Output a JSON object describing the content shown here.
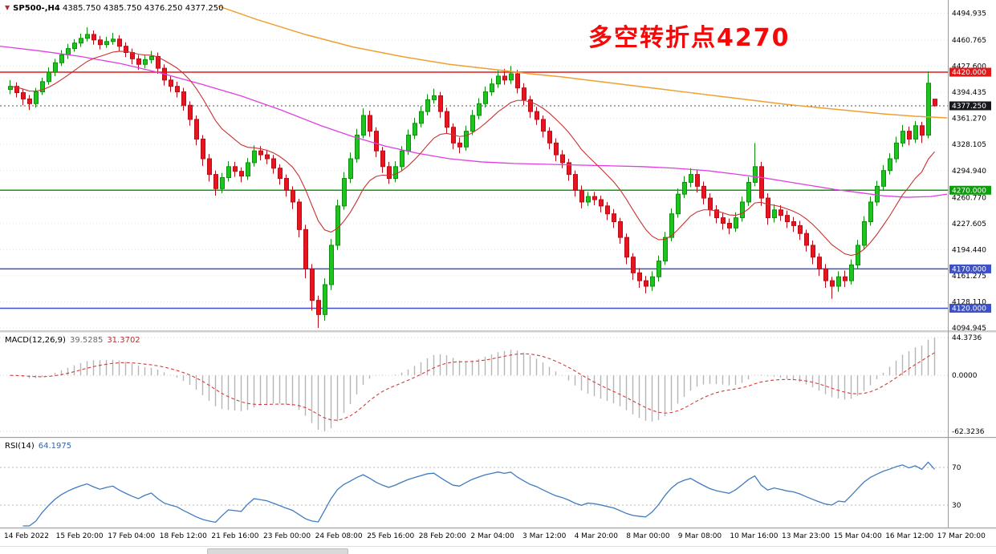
{
  "header": {
    "symbol": "SP500-,H4",
    "ohlc": "4385.750 4385.750 4376.250 4377.250"
  },
  "annotation": {
    "text": "多空转折点4270",
    "color": "#f50808"
  },
  "price_axis": {
    "labels": [
      "4494.935",
      "4460.765",
      "4427.600",
      "4394.435",
      "4361.270",
      "4328.105",
      "4294.940",
      "4260.770",
      "4227.605",
      "4194.440",
      "4161.275",
      "4128.110",
      "4094.945"
    ],
    "current": {
      "value": "4377.250",
      "price": 4377.25,
      "bg": "#16181d"
    },
    "levels": [
      {
        "value": "4420.000",
        "price": 4420,
        "color": "#e01818"
      },
      {
        "value": "4270.000",
        "price": 4270,
        "color": "#0a9e0a"
      },
      {
        "value": "4170.000",
        "price": 4170,
        "color": "#3c50c8"
      },
      {
        "value": "4120.000",
        "price": 4120,
        "color": "#3c50c8"
      }
    ]
  },
  "time_axis": {
    "labels": [
      "14 Feb 2022",
      "15 Feb 20:00",
      "17 Feb 04:00",
      "18 Feb 12:00",
      "21 Feb 16:00",
      "23 Feb 00:00",
      "24 Feb 08:00",
      "25 Feb 16:00",
      "28 Feb 20:00",
      "2 Mar 04:00",
      "3 Mar 12:00",
      "4 Mar 20:00",
      "8 Mar 00:00",
      "9 Mar 08:00",
      "10 Mar 16:00",
      "13 Mar 23:00",
      "15 Mar 04:00",
      "16 Mar 12:00",
      "17 Mar 20:00"
    ]
  },
  "colors": {
    "up": "#1ec41e",
    "up_stroke": "#0d8f0d",
    "down": "#ea1420",
    "down_stroke": "#b40f18",
    "ma_fast_red": "#c83232",
    "ma_mid_magenta": "#e23ce2",
    "ma_slow_orange": "#efa030",
    "grid": "#e3e3e3",
    "macd_hist": "#b6b6b6",
    "macd_signal": "#cf3d3d",
    "rsi_line": "#3f7cbf",
    "divider": "#9a9a9a",
    "current_line": "#555555"
  },
  "chart_data": {
    "type": "candlestick",
    "title": "SP500-,H4",
    "timeframe": "H4",
    "price_range": [
      4094.945,
      4494.935
    ],
    "candles_ohlc": [
      [
        4398,
        4410,
        4392,
        4402
      ],
      [
        4402,
        4407,
        4388,
        4394
      ],
      [
        4394,
        4399,
        4378,
        4386
      ],
      [
        4386,
        4391,
        4372,
        4380
      ],
      [
        4380,
        4400,
        4375,
        4395
      ],
      [
        4395,
        4413,
        4391,
        4408
      ],
      [
        4408,
        4426,
        4404,
        4420
      ],
      [
        4420,
        4437,
        4415,
        4432
      ],
      [
        4432,
        4448,
        4428,
        4442
      ],
      [
        4442,
        4456,
        4437,
        4450
      ],
      [
        4450,
        4462,
        4446,
        4457
      ],
      [
        4457,
        4469,
        4452,
        4463
      ],
      [
        4463,
        4477,
        4459,
        4468
      ],
      [
        4468,
        4473,
        4455,
        4461
      ],
      [
        4461,
        4466,
        4449,
        4455
      ],
      [
        4455,
        4465,
        4451,
        4459
      ],
      [
        4459,
        4470,
        4455,
        4462
      ],
      [
        4462,
        4467,
        4447,
        4453
      ],
      [
        4453,
        4458,
        4439,
        4445
      ],
      [
        4445,
        4450,
        4430,
        4437
      ],
      [
        4437,
        4442,
        4423,
        4430
      ],
      [
        4430,
        4442,
        4425,
        4436
      ],
      [
        4436,
        4447,
        4431,
        4440
      ],
      [
        4440,
        4445,
        4418,
        4425
      ],
      [
        4425,
        4430,
        4403,
        4410
      ],
      [
        4410,
        4416,
        4395,
        4402
      ],
      [
        4402,
        4408,
        4388,
        4395
      ],
      [
        4395,
        4400,
        4371,
        4378
      ],
      [
        4378,
        4383,
        4352,
        4360
      ],
      [
        4360,
        4365,
        4327,
        4335
      ],
      [
        4335,
        4340,
        4301,
        4310
      ],
      [
        4310,
        4316,
        4281,
        4290
      ],
      [
        4290,
        4295,
        4263,
        4272
      ],
      [
        4272,
        4292,
        4266,
        4286
      ],
      [
        4286,
        4307,
        4281,
        4300
      ],
      [
        4300,
        4306,
        4287,
        4294
      ],
      [
        4294,
        4299,
        4280,
        4288
      ],
      [
        4288,
        4311,
        4283,
        4305
      ],
      [
        4305,
        4327,
        4300,
        4320
      ],
      [
        4320,
        4326,
        4308,
        4315
      ],
      [
        4315,
        4321,
        4303,
        4310
      ],
      [
        4310,
        4315,
        4291,
        4298
      ],
      [
        4298,
        4303,
        4277,
        4285
      ],
      [
        4285,
        4290,
        4262,
        4270
      ],
      [
        4270,
        4275,
        4246,
        4255
      ],
      [
        4255,
        4259,
        4210,
        4220
      ],
      [
        4220,
        4226,
        4158,
        4170
      ],
      [
        4170,
        4176,
        4117,
        4130
      ],
      [
        4130,
        4136,
        4095,
        4112
      ],
      [
        4112,
        4158,
        4104,
        4150
      ],
      [
        4150,
        4208,
        4143,
        4200
      ],
      [
        4200,
        4258,
        4194,
        4250
      ],
      [
        4250,
        4293,
        4245,
        4285
      ],
      [
        4285,
        4318,
        4279,
        4310
      ],
      [
        4310,
        4348,
        4305,
        4340
      ],
      [
        4340,
        4374,
        4336,
        4365
      ],
      [
        4365,
        4371,
        4338,
        4345
      ],
      [
        4345,
        4350,
        4312,
        4320
      ],
      [
        4320,
        4325,
        4292,
        4300
      ],
      [
        4300,
        4306,
        4278,
        4285
      ],
      [
        4285,
        4307,
        4280,
        4300
      ],
      [
        4300,
        4326,
        4295,
        4320
      ],
      [
        4320,
        4347,
        4315,
        4340
      ],
      [
        4340,
        4362,
        4335,
        4355
      ],
      [
        4355,
        4377,
        4350,
        4370
      ],
      [
        4370,
        4392,
        4365,
        4385
      ],
      [
        4385,
        4399,
        4380,
        4390
      ],
      [
        4390,
        4395,
        4362,
        4370
      ],
      [
        4370,
        4375,
        4342,
        4350
      ],
      [
        4350,
        4355,
        4322,
        4330
      ],
      [
        4330,
        4337,
        4317,
        4325
      ],
      [
        4325,
        4352,
        4320,
        4345
      ],
      [
        4345,
        4372,
        4340,
        4365
      ],
      [
        4365,
        4387,
        4360,
        4380
      ],
      [
        4380,
        4402,
        4375,
        4395
      ],
      [
        4395,
        4412,
        4390,
        4405
      ],
      [
        4405,
        4422,
        4400,
        4415
      ],
      [
        4415,
        4424,
        4404,
        4410
      ],
      [
        4410,
        4428,
        4405,
        4418
      ],
      [
        4418,
        4423,
        4393,
        4400
      ],
      [
        4400,
        4406,
        4378,
        4385
      ],
      [
        4385,
        4390,
        4362,
        4370
      ],
      [
        4370,
        4376,
        4353,
        4360
      ],
      [
        4360,
        4365,
        4337,
        4345
      ],
      [
        4345,
        4350,
        4322,
        4330
      ],
      [
        4330,
        4336,
        4307,
        4315
      ],
      [
        4315,
        4321,
        4298,
        4305
      ],
      [
        4305,
        4310,
        4282,
        4290
      ],
      [
        4290,
        4295,
        4262,
        4270
      ],
      [
        4270,
        4276,
        4247,
        4255
      ],
      [
        4255,
        4268,
        4250,
        4262
      ],
      [
        4262,
        4268,
        4251,
        4258
      ],
      [
        4258,
        4263,
        4242,
        4250
      ],
      [
        4250,
        4255,
        4232,
        4240
      ],
      [
        4240,
        4246,
        4222,
        4230
      ],
      [
        4230,
        4235,
        4202,
        4210
      ],
      [
        4210,
        4215,
        4176,
        4185
      ],
      [
        4185,
        4190,
        4156,
        4165
      ],
      [
        4165,
        4171,
        4146,
        4155
      ],
      [
        4155,
        4161,
        4139,
        4148
      ],
      [
        4148,
        4167,
        4142,
        4160
      ],
      [
        4160,
        4187,
        4154,
        4180
      ],
      [
        4180,
        4217,
        4175,
        4210
      ],
      [
        4210,
        4247,
        4205,
        4240
      ],
      [
        4240,
        4272,
        4235,
        4265
      ],
      [
        4265,
        4288,
        4260,
        4280
      ],
      [
        4280,
        4298,
        4274,
        4290
      ],
      [
        4290,
        4296,
        4267,
        4275
      ],
      [
        4275,
        4281,
        4252,
        4260
      ],
      [
        4260,
        4266,
        4237,
        4245
      ],
      [
        4245,
        4251,
        4228,
        4235
      ],
      [
        4235,
        4241,
        4220,
        4228
      ],
      [
        4228,
        4234,
        4214,
        4222
      ],
      [
        4222,
        4242,
        4217,
        4235
      ],
      [
        4235,
        4262,
        4230,
        4255
      ],
      [
        4255,
        4287,
        4250,
        4280
      ],
      [
        4280,
        4330,
        4275,
        4300
      ],
      [
        4300,
        4306,
        4250,
        4260
      ],
      [
        4260,
        4266,
        4226,
        4235
      ],
      [
        4235,
        4252,
        4229,
        4245
      ],
      [
        4245,
        4251,
        4231,
        4238
      ],
      [
        4238,
        4244,
        4222,
        4230
      ],
      [
        4230,
        4236,
        4217,
        4225
      ],
      [
        4225,
        4231,
        4207,
        4215
      ],
      [
        4215,
        4220,
        4192,
        4200
      ],
      [
        4200,
        4206,
        4176,
        4185
      ],
      [
        4185,
        4190,
        4161,
        4170
      ],
      [
        4170,
        4176,
        4146,
        4155
      ],
      [
        4155,
        4160,
        4132,
        4148
      ],
      [
        4148,
        4167,
        4141,
        4160
      ],
      [
        4160,
        4168,
        4147,
        4155
      ],
      [
        4155,
        4182,
        4150,
        4175
      ],
      [
        4175,
        4207,
        4170,
        4200
      ],
      [
        4200,
        4237,
        4195,
        4230
      ],
      [
        4230,
        4262,
        4225,
        4255
      ],
      [
        4255,
        4282,
        4250,
        4275
      ],
      [
        4275,
        4302,
        4270,
        4295
      ],
      [
        4295,
        4317,
        4290,
        4310
      ],
      [
        4310,
        4338,
        4305,
        4330
      ],
      [
        4330,
        4353,
        4325,
        4345
      ],
      [
        4345,
        4351,
        4327,
        4335
      ],
      [
        4335,
        4358,
        4330,
        4352
      ],
      [
        4352,
        4357,
        4330,
        4340
      ],
      [
        4340,
        4421,
        4336,
        4406
      ],
      [
        4385.75,
        4385.75,
        4376.25,
        4377.25
      ]
    ],
    "overlays": {
      "ma_fast_period": 13,
      "ma_slow_orange_points": [
        [
          272,
          4504
        ],
        [
          320,
          4487
        ],
        [
          380,
          4468
        ],
        [
          440,
          4452
        ],
        [
          500,
          4440
        ],
        [
          560,
          4430
        ],
        [
          620,
          4423
        ],
        [
          660,
          4418
        ],
        [
          700,
          4414
        ],
        [
          740,
          4409
        ],
        [
          780,
          4404
        ],
        [
          820,
          4399
        ],
        [
          860,
          4394
        ],
        [
          900,
          4389
        ],
        [
          940,
          4384
        ],
        [
          980,
          4379
        ],
        [
          1020,
          4375
        ],
        [
          1060,
          4371
        ],
        [
          1100,
          4367
        ],
        [
          1140,
          4364
        ],
        [
          1180,
          4362
        ]
      ],
      "ma_mid_magenta_points": [
        [
          0,
          4453
        ],
        [
          50,
          4447
        ],
        [
          100,
          4440
        ],
        [
          150,
          4431
        ],
        [
          200,
          4419
        ],
        [
          250,
          4405
        ],
        [
          300,
          4390
        ],
        [
          350,
          4372
        ],
        [
          400,
          4352
        ],
        [
          440,
          4338
        ],
        [
          480,
          4326
        ],
        [
          520,
          4317
        ],
        [
          560,
          4310
        ],
        [
          600,
          4306
        ],
        [
          640,
          4304
        ],
        [
          680,
          4303
        ],
        [
          720,
          4302
        ],
        [
          760,
          4301
        ],
        [
          800,
          4300
        ],
        [
          840,
          4298
        ],
        [
          880,
          4295
        ],
        [
          920,
          4290
        ],
        [
          950,
          4286
        ],
        [
          980,
          4281
        ],
        [
          1010,
          4276
        ],
        [
          1040,
          4271
        ],
        [
          1070,
          4267
        ],
        [
          1100,
          4263
        ],
        [
          1130,
          4261
        ],
        [
          1160,
          4262
        ],
        [
          1180,
          4265
        ]
      ]
    },
    "macd": {
      "label": "MACD(12,26,9)",
      "value_main": "39.5285",
      "value_signal": "31.3702",
      "params": [
        12,
        26,
        9
      ],
      "axis": [
        "44.3736",
        "0.0000",
        "-62.3236"
      ]
    },
    "rsi": {
      "label": "RSI(14)",
      "value": "64.1975",
      "period": 14,
      "levels": [
        "70",
        "30"
      ]
    }
  }
}
